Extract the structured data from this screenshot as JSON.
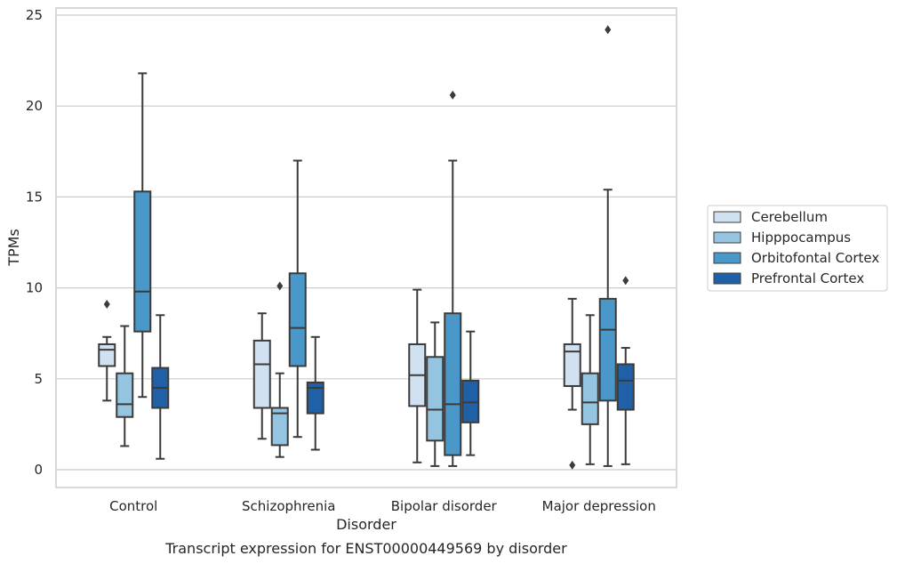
{
  "chart_data": {
    "type": "box",
    "title": "",
    "caption": "Transcript expression for ENST00000449569 by disorder",
    "xlabel": "Disorder",
    "ylabel": "TPMs",
    "ylim": [
      -1,
      25.4
    ],
    "yticks": [
      0,
      5,
      10,
      15,
      20,
      25
    ],
    "grid": "horizontal",
    "legend_position": "right",
    "categories": [
      "Control",
      "Schizophrenia",
      "Bipolar disorder",
      "Major depression"
    ],
    "series": [
      {
        "name": "Cerebellum",
        "color": "#d0e1f2",
        "boxes": [
          {
            "whislo": 3.8,
            "q1": 5.7,
            "med": 6.6,
            "q3": 6.9,
            "whishi": 7.3,
            "fliers": [
              9.1
            ]
          },
          {
            "whislo": 1.7,
            "q1": 3.4,
            "med": 5.8,
            "q3": 7.1,
            "whishi": 8.6,
            "fliers": []
          },
          {
            "whislo": 0.4,
            "q1": 3.5,
            "med": 5.2,
            "q3": 6.9,
            "whishi": 9.9,
            "fliers": []
          },
          {
            "whislo": 3.3,
            "q1": 4.6,
            "med": 6.5,
            "q3": 6.9,
            "whishi": 9.4,
            "fliers": [
              0.25
            ]
          }
        ]
      },
      {
        "name": "Hipppocampus",
        "color": "#94c4df",
        "boxes": [
          {
            "whislo": 1.3,
            "q1": 2.9,
            "med": 3.6,
            "q3": 5.3,
            "whishi": 7.9,
            "fliers": []
          },
          {
            "whislo": 0.7,
            "q1": 1.35,
            "med": 3.1,
            "q3": 3.4,
            "whishi": 5.3,
            "fliers": [
              10.1
            ]
          },
          {
            "whislo": 0.2,
            "q1": 1.6,
            "med": 3.3,
            "q3": 6.2,
            "whishi": 8.1,
            "fliers": []
          },
          {
            "whislo": 0.3,
            "q1": 2.5,
            "med": 3.7,
            "q3": 5.3,
            "whishi": 8.5,
            "fliers": []
          }
        ]
      },
      {
        "name": "Orbitofontal Cortex",
        "color": "#4a98c9",
        "boxes": [
          {
            "whislo": 4.0,
            "q1": 7.6,
            "med": 9.8,
            "q3": 15.3,
            "whishi": 21.8,
            "fliers": []
          },
          {
            "whislo": 1.8,
            "q1": 5.7,
            "med": 7.8,
            "q3": 10.8,
            "whishi": 17.0,
            "fliers": []
          },
          {
            "whislo": 0.2,
            "q1": 0.8,
            "med": 3.6,
            "q3": 8.6,
            "whishi": 17.0,
            "fliers": [
              20.6
            ]
          },
          {
            "whislo": 0.2,
            "q1": 3.8,
            "med": 7.7,
            "q3": 9.4,
            "whishi": 15.4,
            "fliers": [
              24.2
            ]
          }
        ]
      },
      {
        "name": "Prefrontal Cortex",
        "color": "#2060a7",
        "boxes": [
          {
            "whislo": 0.6,
            "q1": 3.4,
            "med": 4.5,
            "q3": 5.6,
            "whishi": 8.5,
            "fliers": []
          },
          {
            "whislo": 1.1,
            "q1": 3.1,
            "med": 4.5,
            "q3": 4.8,
            "whishi": 7.3,
            "fliers": []
          },
          {
            "whislo": 0.8,
            "q1": 2.6,
            "med": 3.7,
            "q3": 4.9,
            "whishi": 7.6,
            "fliers": []
          },
          {
            "whislo": 0.3,
            "q1": 3.3,
            "med": 4.9,
            "q3": 5.8,
            "whishi": 6.7,
            "fliers": [
              10.4
            ]
          }
        ]
      }
    ]
  }
}
